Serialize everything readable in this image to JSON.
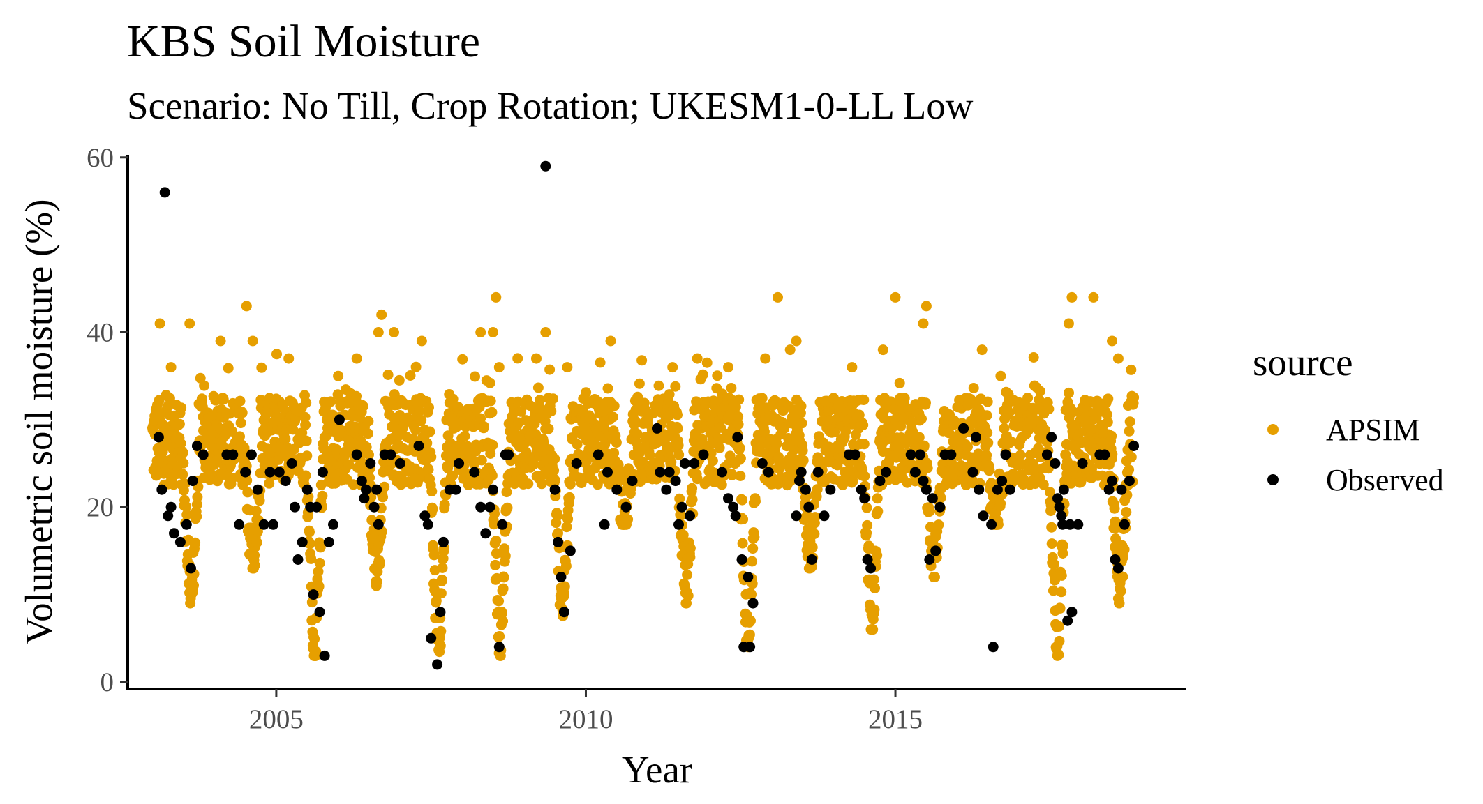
{
  "chart_data": {
    "type": "scatter",
    "title": "KBS Soil Moisture",
    "subtitle": "Scenario: No Till, Crop Rotation; UKESM1-0-LL Low",
    "xlabel": "Year",
    "ylabel": "Volumetric soil moisture (%)",
    "xlim": [
      2002.6,
      2019.7
    ],
    "ylim": [
      -0.8,
      60.3
    ],
    "xticks": [
      2005,
      2010,
      2015
    ],
    "yticks": [
      0,
      20,
      40,
      60
    ],
    "grid": false,
    "legend": {
      "title": "source",
      "position": "right"
    },
    "series": [
      {
        "name": "APSIM",
        "color": "#E69F00",
        "generated": true,
        "x_range": [
          2003.0,
          2018.85
        ],
        "baseline": 26,
        "dry_seasons": [
          {
            "year": 2003,
            "min": 9
          },
          {
            "year": 2004,
            "min": 13
          },
          {
            "year": 2005,
            "min": 3
          },
          {
            "year": 2006,
            "min": 11
          },
          {
            "year": 2007,
            "min": 2
          },
          {
            "year": 2008,
            "min": 3
          },
          {
            "year": 2009,
            "min": 7
          },
          {
            "year": 2010,
            "min": 18
          },
          {
            "year": 2011,
            "min": 9
          },
          {
            "year": 2012,
            "min": 4
          },
          {
            "year": 2013,
            "min": 13
          },
          {
            "year": 2014,
            "min": 6
          },
          {
            "year": 2015,
            "min": 12
          },
          {
            "year": 2016,
            "min": 18
          },
          {
            "year": 2017,
            "min": 3
          },
          {
            "year": 2018,
            "min": 9
          }
        ],
        "peaks": [
          [
            2003.12,
            41
          ],
          [
            2003.3,
            36
          ],
          [
            2003.6,
            41
          ],
          [
            2004.1,
            39
          ],
          [
            2004.52,
            43
          ],
          [
            2004.62,
            39
          ],
          [
            2005.2,
            37
          ],
          [
            2006.0,
            35
          ],
          [
            2006.3,
            37
          ],
          [
            2006.65,
            40
          ],
          [
            2006.7,
            42
          ],
          [
            2006.9,
            40
          ],
          [
            2007.35,
            39
          ],
          [
            2008.3,
            40
          ],
          [
            2008.5,
            40
          ],
          [
            2008.55,
            44
          ],
          [
            2008.6,
            36
          ],
          [
            2009.2,
            37
          ],
          [
            2009.35,
            40
          ],
          [
            2009.7,
            36
          ],
          [
            2010.4,
            39
          ],
          [
            2011.4,
            36
          ],
          [
            2011.8,
            37
          ],
          [
            2012.3,
            36
          ],
          [
            2012.9,
            37
          ],
          [
            2013.1,
            44
          ],
          [
            2013.3,
            38
          ],
          [
            2013.4,
            39
          ],
          [
            2014.3,
            36
          ],
          [
            2014.8,
            38
          ],
          [
            2015.0,
            44
          ],
          [
            2015.45,
            41
          ],
          [
            2015.5,
            43
          ],
          [
            2016.4,
            38
          ],
          [
            2016.7,
            35
          ],
          [
            2017.8,
            41
          ],
          [
            2017.85,
            44
          ],
          [
            2018.2,
            44
          ],
          [
            2018.5,
            39
          ],
          [
            2018.6,
            37
          ]
        ]
      },
      {
        "name": "Observed",
        "color": "#000000",
        "points": [
          [
            2003.1,
            28
          ],
          [
            2003.15,
            22
          ],
          [
            2003.2,
            56
          ],
          [
            2003.25,
            19
          ],
          [
            2003.3,
            20
          ],
          [
            2003.35,
            17
          ],
          [
            2003.45,
            16
          ],
          [
            2003.55,
            18
          ],
          [
            2003.62,
            13
          ],
          [
            2003.72,
            27
          ],
          [
            2003.82,
            26
          ],
          [
            2003.65,
            23
          ],
          [
            2004.2,
            26
          ],
          [
            2004.3,
            26
          ],
          [
            2004.4,
            18
          ],
          [
            2004.5,
            24
          ],
          [
            2004.6,
            26
          ],
          [
            2004.7,
            22
          ],
          [
            2004.8,
            18
          ],
          [
            2004.9,
            24
          ],
          [
            2004.95,
            18
          ],
          [
            2005.05,
            24
          ],
          [
            2005.15,
            23
          ],
          [
            2005.25,
            25
          ],
          [
            2005.3,
            20
          ],
          [
            2005.35,
            14
          ],
          [
            2005.42,
            16
          ],
          [
            2005.5,
            22
          ],
          [
            2005.55,
            20
          ],
          [
            2005.6,
            10
          ],
          [
            2005.65,
            20
          ],
          [
            2005.7,
            8
          ],
          [
            2005.75,
            24
          ],
          [
            2005.78,
            3
          ],
          [
            2005.85,
            16
          ],
          [
            2005.92,
            18
          ],
          [
            2006.02,
            30
          ],
          [
            2006.3,
            26
          ],
          [
            2006.38,
            23
          ],
          [
            2006.42,
            21
          ],
          [
            2006.45,
            22
          ],
          [
            2006.52,
            25
          ],
          [
            2006.58,
            20
          ],
          [
            2006.62,
            22
          ],
          [
            2006.65,
            18
          ],
          [
            2006.75,
            26
          ],
          [
            2006.85,
            26
          ],
          [
            2007.0,
            25
          ],
          [
            2007.3,
            27
          ],
          [
            2007.4,
            19
          ],
          [
            2007.45,
            18
          ],
          [
            2007.5,
            5
          ],
          [
            2007.6,
            2
          ],
          [
            2007.65,
            8
          ],
          [
            2007.7,
            16
          ],
          [
            2007.8,
            22
          ],
          [
            2007.9,
            22
          ],
          [
            2007.95,
            25
          ],
          [
            2008.2,
            24
          ],
          [
            2008.3,
            20
          ],
          [
            2008.38,
            17
          ],
          [
            2008.45,
            20
          ],
          [
            2008.5,
            22
          ],
          [
            2008.6,
            4
          ],
          [
            2008.65,
            18
          ],
          [
            2008.7,
            26
          ],
          [
            2008.75,
            26
          ],
          [
            2009.35,
            59
          ],
          [
            2009.5,
            22
          ],
          [
            2009.55,
            16
          ],
          [
            2009.6,
            12
          ],
          [
            2009.65,
            8
          ],
          [
            2009.75,
            15
          ],
          [
            2009.85,
            25
          ],
          [
            2010.2,
            26
          ],
          [
            2010.3,
            18
          ],
          [
            2010.35,
            24
          ],
          [
            2010.5,
            22
          ],
          [
            2010.65,
            20
          ],
          [
            2010.75,
            23
          ],
          [
            2011.15,
            29
          ],
          [
            2011.2,
            24
          ],
          [
            2011.3,
            22
          ],
          [
            2011.35,
            24
          ],
          [
            2011.45,
            23
          ],
          [
            2011.5,
            18
          ],
          [
            2011.55,
            20
          ],
          [
            2011.6,
            25
          ],
          [
            2011.68,
            19
          ],
          [
            2011.75,
            25
          ],
          [
            2011.9,
            26
          ],
          [
            2012.2,
            24
          ],
          [
            2012.3,
            21
          ],
          [
            2012.38,
            20
          ],
          [
            2012.42,
            19
          ],
          [
            2012.45,
            28
          ],
          [
            2012.52,
            14
          ],
          [
            2012.55,
            4
          ],
          [
            2012.62,
            12
          ],
          [
            2012.65,
            4
          ],
          [
            2012.7,
            9
          ],
          [
            2012.85,
            25
          ],
          [
            2012.95,
            24
          ],
          [
            2013.4,
            19
          ],
          [
            2013.45,
            23
          ],
          [
            2013.48,
            24
          ],
          [
            2013.55,
            22
          ],
          [
            2013.6,
            20
          ],
          [
            2013.65,
            14
          ],
          [
            2013.75,
            24
          ],
          [
            2013.85,
            19
          ],
          [
            2013.95,
            22
          ],
          [
            2014.25,
            26
          ],
          [
            2014.35,
            26
          ],
          [
            2014.45,
            22
          ],
          [
            2014.5,
            21
          ],
          [
            2014.55,
            14
          ],
          [
            2014.6,
            13
          ],
          [
            2014.75,
            23
          ],
          [
            2014.85,
            24
          ],
          [
            2015.25,
            26
          ],
          [
            2015.32,
            24
          ],
          [
            2015.4,
            26
          ],
          [
            2015.45,
            23
          ],
          [
            2015.5,
            22
          ],
          [
            2015.55,
            14
          ],
          [
            2015.6,
            21
          ],
          [
            2015.65,
            15
          ],
          [
            2015.72,
            20
          ],
          [
            2015.8,
            26
          ],
          [
            2015.9,
            26
          ],
          [
            2016.1,
            29
          ],
          [
            2016.25,
            24
          ],
          [
            2016.3,
            28
          ],
          [
            2016.35,
            22
          ],
          [
            2016.42,
            19
          ],
          [
            2016.55,
            18
          ],
          [
            2016.58,
            4
          ],
          [
            2016.65,
            22
          ],
          [
            2016.72,
            23
          ],
          [
            2016.78,
            26
          ],
          [
            2016.85,
            22
          ],
          [
            2017.45,
            26
          ],
          [
            2017.52,
            28
          ],
          [
            2017.58,
            25
          ],
          [
            2017.62,
            21
          ],
          [
            2017.65,
            20
          ],
          [
            2017.68,
            19
          ],
          [
            2017.7,
            18
          ],
          [
            2017.72,
            22
          ],
          [
            2017.78,
            7
          ],
          [
            2017.82,
            18
          ],
          [
            2017.85,
            8
          ],
          [
            2017.95,
            18
          ],
          [
            2018.02,
            25
          ],
          [
            2018.3,
            26
          ],
          [
            2018.38,
            26
          ],
          [
            2018.45,
            22
          ],
          [
            2018.5,
            23
          ],
          [
            2018.55,
            14
          ],
          [
            2018.6,
            13
          ],
          [
            2018.65,
            22
          ],
          [
            2018.7,
            18
          ],
          [
            2018.78,
            23
          ],
          [
            2018.85,
            27
          ]
        ]
      }
    ]
  }
}
